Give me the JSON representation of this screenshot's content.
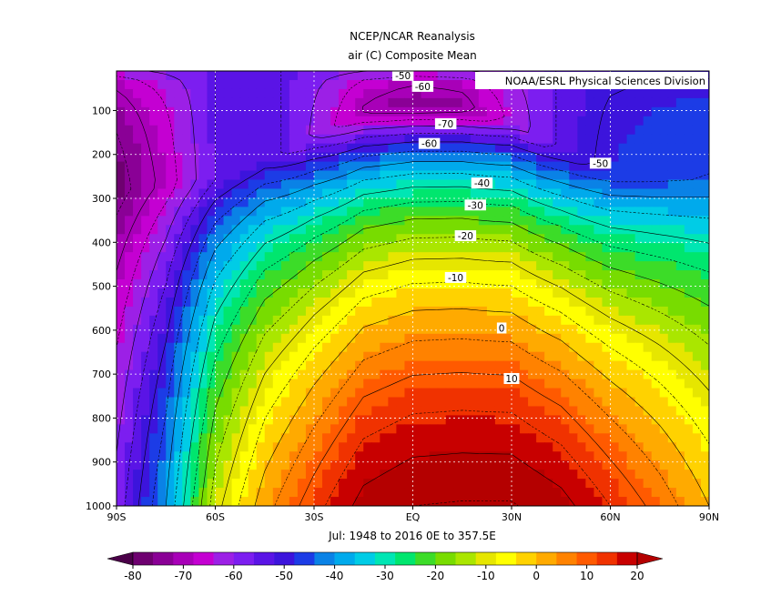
{
  "chart_data": {
    "type": "heatmap",
    "title": "NCEP/NCAR Reanalysis",
    "subtitle": "air (C) Composite Mean",
    "caption": "Jul: 1948 to 2016 0E to 357.5E",
    "credit": "NOAA/ESRL Physical Sciences Division",
    "x_ticks": [
      "90S",
      "60S",
      "30S",
      "EQ",
      "30N",
      "60N",
      "90N"
    ],
    "x_tick_values": [
      -90,
      -60,
      -30,
      0,
      30,
      60,
      90
    ],
    "y_ticks": [
      "100",
      "200",
      "300",
      "400",
      "500",
      "600",
      "700",
      "800",
      "900",
      "1000"
    ],
    "y_tick_values": [
      100,
      200,
      300,
      400,
      500,
      600,
      700,
      800,
      900,
      1000
    ],
    "xlim": [
      -90,
      90
    ],
    "ylim": [
      1000,
      10
    ],
    "grid": true,
    "contour_interval": 5,
    "contour_labels": [
      {
        "text": "-50",
        "lat": -3,
        "p": 20
      },
      {
        "text": "-60",
        "lat": 3,
        "p": 45
      },
      {
        "text": "-70",
        "lat": 10,
        "p": 130
      },
      {
        "text": "-60",
        "lat": 5,
        "p": 175
      },
      {
        "text": "-50",
        "lat": 57,
        "p": 220
      },
      {
        "text": "-40",
        "lat": 21,
        "p": 265
      },
      {
        "text": "-30",
        "lat": 19,
        "p": 315
      },
      {
        "text": "-20",
        "lat": 16,
        "p": 385
      },
      {
        "text": "-10",
        "lat": 13,
        "p": 480
      },
      {
        "text": "0",
        "lat": 27,
        "p": 595
      },
      {
        "text": "10",
        "lat": 30,
        "p": 710
      }
    ],
    "colorbar": {
      "ticks": [
        "-80",
        "-70",
        "-60",
        "-50",
        "-40",
        "-30",
        "-20",
        "-10",
        "0",
        "10",
        "20"
      ],
      "levels": [
        -80,
        -75,
        -70,
        -65,
        -60,
        -55,
        -50,
        -45,
        -40,
        -35,
        -30,
        -25,
        -20,
        -15,
        -10,
        -5,
        0,
        5,
        10,
        15,
        20
      ],
      "colors": [
        "#6e0070",
        "#8a0096",
        "#a800b8",
        "#c400d2",
        "#9c20e6",
        "#7c1ef0",
        "#5a14e6",
        "#3c14dc",
        "#1c3ce6",
        "#0a82e6",
        "#00aaec",
        "#00cce6",
        "#00e6b4",
        "#00e66e",
        "#3cdc28",
        "#78dc00",
        "#aae600",
        "#e6e600",
        "#ffff00",
        "#ffd200",
        "#ffaa00",
        "#ff8200",
        "#ff5a00",
        "#f03200",
        "#c80000"
      ],
      "under_color": "#4a0048",
      "over_color": "#b40000"
    },
    "temperature_profile": {
      "lats": [
        -90,
        -75,
        -60,
        -45,
        -30,
        -15,
        0,
        15,
        30,
        45,
        60,
        75,
        90
      ],
      "surface_temp": [
        -58,
        -40,
        -12,
        3,
        13,
        22,
        25,
        25.5,
        25.5,
        22,
        15,
        8,
        0
      ],
      "tropopause_p": [
        280,
        270,
        260,
        220,
        160,
        110,
        95,
        100,
        130,
        195,
        245,
        255,
        255
      ],
      "tropopause_temp": [
        -78,
        -68,
        -55,
        -52,
        -61,
        -71,
        -75,
        -73,
        -64,
        -54,
        -48,
        -46,
        -45
      ]
    }
  }
}
